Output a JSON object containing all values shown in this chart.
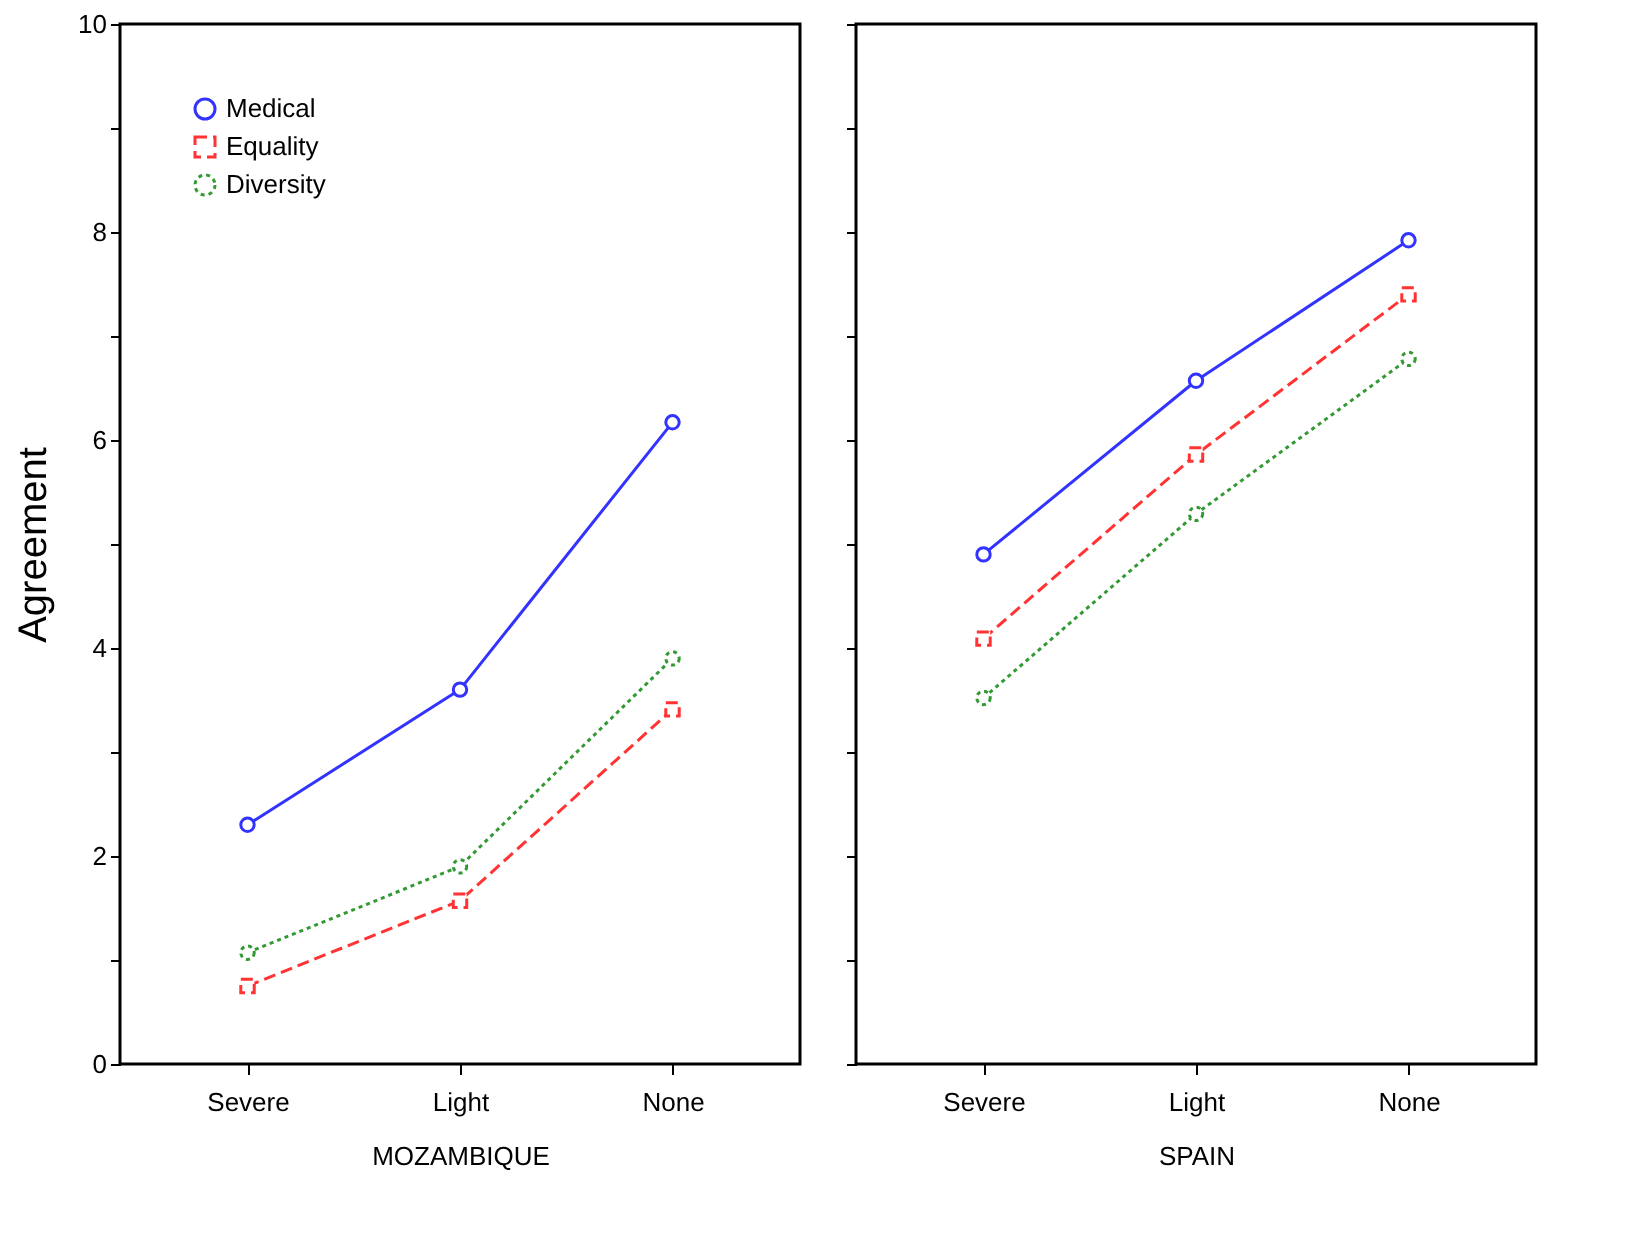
{
  "chart_data": [
    {
      "type": "line",
      "ylabel": "Agreement",
      "xlabel": "MOZAMBIQUE",
      "categories": [
        "Severe",
        "Light",
        "None"
      ],
      "ylim": [
        0,
        10
      ],
      "yticks": [
        0,
        {
          "value": 1,
          "label": null
        },
        2,
        {
          "value": 3,
          "label": null
        },
        4,
        {
          "value": 5,
          "label": null
        },
        6,
        {
          "value": 7,
          "label": null
        },
        8,
        {
          "value": 9,
          "label": null
        },
        10
      ],
      "grid": false,
      "legend": "top left",
      "series": [
        {
          "name": "Medical",
          "color": "#3333ff",
          "marker": "circle",
          "line_style": "solid",
          "values": [
            2.3,
            3.6,
            6.17
          ]
        },
        {
          "name": "Equality",
          "color": "#ff3333",
          "marker": "square",
          "line_style": "dashed",
          "values": [
            0.75,
            1.57,
            3.41
          ]
        },
        {
          "name": "Diversity",
          "color": "#339933",
          "marker": "circle",
          "line_style": "dotted",
          "values": [
            1.07,
            1.9,
            3.9
          ]
        }
      ]
    },
    {
      "type": "line",
      "xlabel": "SPAIN",
      "categories": [
        "Severe",
        "Light",
        "None"
      ],
      "ylim": [
        0,
        10
      ],
      "yticks": [
        0,
        {
          "value": 1,
          "label": null
        },
        2,
        {
          "value": 3,
          "label": null
        },
        4,
        {
          "value": 5,
          "label": null
        },
        6,
        {
          "value": 7,
          "label": null
        },
        8,
        {
          "value": 9,
          "label": null
        },
        10
      ],
      "grid": false,
      "legend": false,
      "tick_labels": "x",
      "series": [
        {
          "color": "#3333ff",
          "marker": "circle",
          "line_style": "solid",
          "values": [
            4.9,
            6.57,
            7.92
          ]
        },
        {
          "color": "#ff3333",
          "marker": "square",
          "line_style": "dashed",
          "values": [
            4.09,
            5.86,
            7.4
          ]
        },
        {
          "color": "#339933",
          "marker": "circle",
          "line_style": "dotted",
          "values": [
            3.52,
            5.29,
            6.78
          ]
        }
      ]
    }
  ]
}
